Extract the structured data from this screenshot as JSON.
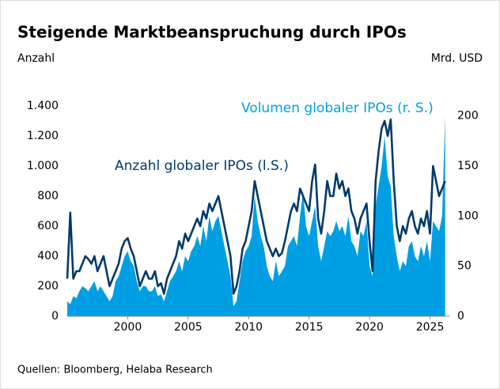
{
  "chart_data": {
    "type": "line-area",
    "title": "Steigende Marktbeanspruchung durch IPOs",
    "y_label": "Anzahl",
    "y2_label": "Mrd. USD",
    "source": "Quellen: Bloomberg, Helaba Research",
    "x": [
      1995,
      1995.25,
      1995.5,
      1995.75,
      1996,
      1996.25,
      1996.5,
      1996.75,
      1997,
      1997.25,
      1997.5,
      1997.75,
      1998,
      1998.25,
      1998.5,
      1998.75,
      1999,
      1999.25,
      1999.5,
      1999.75,
      2000,
      2000.25,
      2000.5,
      2000.75,
      2001,
      2001.25,
      2001.5,
      2001.75,
      2002,
      2002.25,
      2002.5,
      2002.75,
      2003,
      2003.25,
      2003.5,
      2003.75,
      2004,
      2004.25,
      2004.5,
      2004.75,
      2005,
      2005.25,
      2005.5,
      2005.75,
      2006,
      2006.25,
      2006.5,
      2006.75,
      2007,
      2007.25,
      2007.5,
      2007.75,
      2008,
      2008.25,
      2008.5,
      2008.75,
      2009,
      2009.25,
      2009.5,
      2009.75,
      2010,
      2010.25,
      2010.5,
      2010.75,
      2011,
      2011.25,
      2011.5,
      2011.75,
      2012,
      2012.25,
      2012.5,
      2012.75,
      2013,
      2013.25,
      2013.5,
      2013.75,
      2014,
      2014.25,
      2014.5,
      2014.75,
      2015,
      2015.25,
      2015.5,
      2015.75,
      2016,
      2016.25,
      2016.5,
      2016.75,
      2017,
      2017.25,
      2017.5,
      2017.75,
      2018,
      2018.25,
      2018.5,
      2018.75,
      2019,
      2019.25,
      2019.5,
      2019.75,
      2020,
      2020.25,
      2020.5,
      2020.75,
      2021,
      2021.25,
      2021.5,
      2021.75,
      2022,
      2022.25,
      2022.5,
      2022.75,
      2023,
      2023.25,
      2023.5,
      2023.75,
      2024,
      2024.25,
      2024.5,
      2024.75,
      2025,
      2025.25,
      2025.5,
      2025.75,
      2026,
      2026.25
    ],
    "series": [
      {
        "name": "Anzahl globaler IPOs (l.S.)",
        "color": "#003a6b",
        "axis": "y",
        "values": [
          250,
          690,
          250,
          300,
          300,
          350,
          400,
          380,
          350,
          400,
          300,
          350,
          400,
          300,
          200,
          250,
          300,
          350,
          450,
          500,
          520,
          450,
          400,
          300,
          200,
          250,
          300,
          250,
          250,
          300,
          200,
          220,
          150,
          250,
          300,
          350,
          400,
          500,
          450,
          550,
          500,
          550,
          600,
          650,
          600,
          700,
          650,
          750,
          700,
          750,
          800,
          700,
          600,
          500,
          400,
          150,
          200,
          300,
          450,
          500,
          600,
          700,
          900,
          800,
          700,
          600,
          500,
          450,
          400,
          450,
          400,
          420,
          500,
          600,
          700,
          750,
          700,
          850,
          800,
          750,
          700,
          900,
          1010,
          650,
          550,
          700,
          900,
          800,
          800,
          950,
          850,
          900,
          800,
          850,
          700,
          650,
          550,
          650,
          700,
          750,
          500,
          300,
          900,
          1100,
          1250,
          1300,
          1200,
          1310,
          900,
          600,
          500,
          600,
          550,
          650,
          700,
          600,
          550,
          650,
          600,
          700,
          550,
          1000,
          900,
          800,
          850,
          900
        ]
      },
      {
        "name": "Volumen globaler IPOs (r. S.)",
        "color": "#009fe3",
        "axis": "y2",
        "values": [
          15,
          12,
          20,
          18,
          25,
          30,
          28,
          25,
          30,
          35,
          25,
          30,
          25,
          20,
          15,
          20,
          35,
          40,
          50,
          60,
          65,
          55,
          50,
          35,
          25,
          30,
          30,
          25,
          25,
          30,
          20,
          22,
          15,
          25,
          35,
          40,
          45,
          55,
          45,
          60,
          55,
          65,
          70,
          80,
          70,
          90,
          75,
          100,
          85,
          95,
          100,
          85,
          70,
          55,
          40,
          10,
          15,
          35,
          55,
          65,
          70,
          80,
          120,
          95,
          80,
          70,
          50,
          40,
          35,
          55,
          40,
          45,
          50,
          70,
          75,
          80,
          70,
          100,
          125,
          90,
          80,
          95,
          110,
          70,
          55,
          70,
          85,
          80,
          85,
          95,
          85,
          90,
          80,
          100,
          75,
          70,
          60,
          85,
          80,
          95,
          50,
          40,
          110,
          130,
          150,
          180,
          140,
          130,
          80,
          60,
          45,
          55,
          50,
          70,
          75,
          60,
          55,
          70,
          60,
          75,
          55,
          95,
          90,
          85,
          100,
          200
        ]
      }
    ],
    "xlim": [
      1995,
      2026.6
    ],
    "xticks": [
      2000,
      2005,
      2010,
      2015,
      2020,
      2025
    ],
    "ylim": [
      0,
      1400
    ],
    "yticks": [
      0,
      200,
      400,
      600,
      800,
      {
        "value": 1000,
        "label": "1.000"
      },
      {
        "value": 1200,
        "label": "1.200"
      },
      {
        "value": 1400,
        "label": "1.400"
      }
    ],
    "y2lim": [
      0,
      210
    ],
    "y2ticks": [
      0,
      50,
      100,
      150,
      200
    ]
  }
}
